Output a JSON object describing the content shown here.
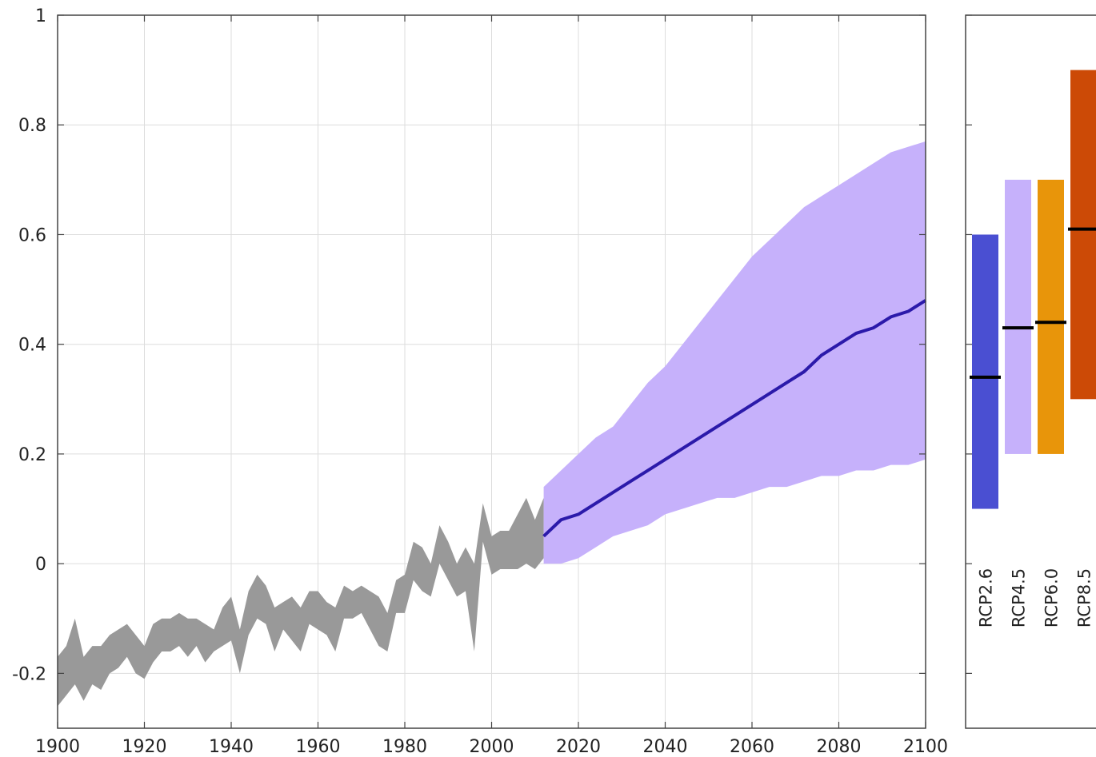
{
  "chart_data": [
    {
      "type": "area",
      "title": "",
      "xlabel": "",
      "ylabel": "",
      "xlim": [
        1900,
        2100
      ],
      "ylim": [
        -0.3,
        1.0
      ],
      "grid": true,
      "x_ticks": [
        1900,
        1920,
        1940,
        1960,
        1980,
        2000,
        2020,
        2040,
        2060,
        2080,
        2100
      ],
      "y_ticks": [
        -0.2,
        0,
        0.2,
        0.4,
        0.6,
        0.8,
        1
      ],
      "x_tick_labels": [
        "1900",
        "1920",
        "1940",
        "1960",
        "1980",
        "2000",
        "2020",
        "2040",
        "2060",
        "2080",
        "2100"
      ],
      "y_tick_labels": [
        "-0.2",
        "0",
        "0.2",
        "0.4",
        "0.6",
        "0.8",
        "1"
      ],
      "series": [
        {
          "kind": "band",
          "color": "#999999",
          "x": [
            1900,
            1902,
            1904,
            1906,
            1908,
            1910,
            1912,
            1914,
            1916,
            1918,
            1920,
            1922,
            1924,
            1926,
            1928,
            1930,
            1932,
            1934,
            1936,
            1938,
            1940,
            1942,
            1944,
            1946,
            1948,
            1950,
            1952,
            1954,
            1956,
            1958,
            1960,
            1962,
            1964,
            1966,
            1968,
            1970,
            1972,
            1974,
            1976,
            1978,
            1980,
            1982,
            1984,
            1986,
            1988,
            1990,
            1992,
            1994,
            1996,
            1998,
            2000,
            2002,
            2004,
            2006,
            2008,
            2010,
            2012
          ],
          "lower": [
            -0.26,
            -0.24,
            -0.22,
            -0.25,
            -0.22,
            -0.23,
            -0.2,
            -0.19,
            -0.17,
            -0.2,
            -0.21,
            -0.18,
            -0.16,
            -0.16,
            -0.15,
            -0.17,
            -0.15,
            -0.18,
            -0.16,
            -0.15,
            -0.14,
            -0.2,
            -0.13,
            -0.1,
            -0.11,
            -0.16,
            -0.12,
            -0.14,
            -0.16,
            -0.11,
            -0.12,
            -0.13,
            -0.16,
            -0.1,
            -0.1,
            -0.09,
            -0.12,
            -0.15,
            -0.16,
            -0.09,
            -0.09,
            -0.03,
            -0.05,
            -0.06,
            0.0,
            -0.03,
            -0.06,
            -0.05,
            -0.16,
            0.04,
            -0.02,
            -0.01,
            -0.01,
            -0.01,
            0.0,
            -0.01,
            0.01
          ],
          "upper": [
            -0.17,
            -0.15,
            -0.1,
            -0.17,
            -0.15,
            -0.15,
            -0.13,
            -0.12,
            -0.11,
            -0.13,
            -0.15,
            -0.11,
            -0.1,
            -0.1,
            -0.09,
            -0.1,
            -0.1,
            -0.11,
            -0.12,
            -0.08,
            -0.06,
            -0.12,
            -0.05,
            -0.02,
            -0.04,
            -0.08,
            -0.07,
            -0.06,
            -0.08,
            -0.05,
            -0.05,
            -0.07,
            -0.08,
            -0.04,
            -0.05,
            -0.04,
            -0.05,
            -0.06,
            -0.09,
            -0.03,
            -0.02,
            0.04,
            0.03,
            0.0,
            0.07,
            0.04,
            0.0,
            0.03,
            0.0,
            0.11,
            0.05,
            0.06,
            0.06,
            0.09,
            0.12,
            0.08,
            0.12
          ]
        },
        {
          "kind": "band",
          "color": "#c6b1fb",
          "x": [
            2012,
            2016,
            2020,
            2024,
            2028,
            2032,
            2036,
            2040,
            2044,
            2048,
            2052,
            2056,
            2060,
            2064,
            2068,
            2072,
            2076,
            2080,
            2084,
            2088,
            2092,
            2096,
            2100
          ],
          "lower": [
            0.0,
            0.0,
            0.01,
            0.03,
            0.05,
            0.06,
            0.07,
            0.09,
            0.1,
            0.11,
            0.12,
            0.12,
            0.13,
            0.14,
            0.14,
            0.15,
            0.16,
            0.16,
            0.17,
            0.17,
            0.18,
            0.18,
            0.19
          ],
          "upper": [
            0.14,
            0.17,
            0.2,
            0.23,
            0.25,
            0.29,
            0.33,
            0.36,
            0.4,
            0.44,
            0.48,
            0.52,
            0.56,
            0.59,
            0.62,
            0.65,
            0.67,
            0.69,
            0.71,
            0.73,
            0.75,
            0.76,
            0.77
          ]
        },
        {
          "kind": "line",
          "color": "#2b1aaa",
          "x": [
            2012,
            2016,
            2020,
            2024,
            2028,
            2032,
            2036,
            2040,
            2044,
            2048,
            2052,
            2056,
            2060,
            2064,
            2068,
            2072,
            2076,
            2080,
            2084,
            2088,
            2092,
            2096,
            2100
          ],
          "values": [
            0.05,
            0.08,
            0.09,
            0.11,
            0.13,
            0.15,
            0.17,
            0.19,
            0.21,
            0.23,
            0.25,
            0.27,
            0.29,
            0.31,
            0.33,
            0.35,
            0.38,
            0.4,
            0.42,
            0.43,
            0.45,
            0.46,
            0.48
          ]
        }
      ]
    },
    {
      "type": "bar",
      "title": "",
      "ylim": [
        -0.3,
        1.0
      ],
      "categories": [
        "RCP2.6",
        "RCP4.5",
        "RCP6.0",
        "RCP8.5"
      ],
      "series": [
        {
          "kind": "range",
          "low": [
            0.1,
            0.2,
            0.2,
            0.3
          ],
          "high": [
            0.6,
            0.7,
            0.7,
            0.9
          ],
          "mean": [
            0.34,
            0.43,
            0.44,
            0.61
          ],
          "colors": [
            "#4a4fd2",
            "#c6b1fb",
            "#e8950a",
            "#cc4a06"
          ]
        }
      ]
    }
  ]
}
